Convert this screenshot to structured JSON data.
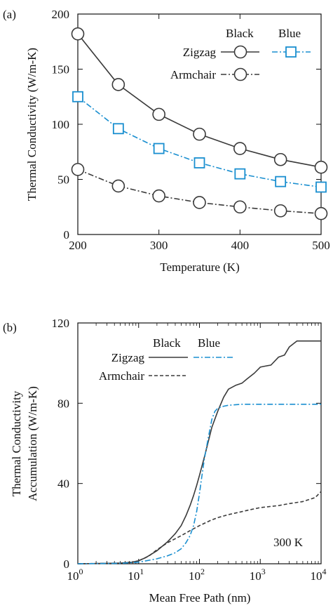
{
  "colors": {
    "black": "#3a3a3a",
    "blue": "#1a8fd0"
  },
  "chart_data": [
    {
      "panel": "(a)",
      "type": "line",
      "xlabel": "Temperature (K)",
      "ylabel": "Thermal Conductivity (W/m-K)",
      "xlim": [
        200,
        500
      ],
      "ylim": [
        0,
        200
      ],
      "xticks": [
        200,
        300,
        400,
        500
      ],
      "yticks": [
        0,
        50,
        100,
        150,
        200
      ],
      "grid": false,
      "legend": {
        "position": "top-right",
        "col_black": "Black",
        "col_blue": "Blue",
        "rows": [
          "Zigzag",
          "Armchair"
        ]
      },
      "x": [
        200,
        250,
        300,
        350,
        400,
        450,
        500
      ],
      "series": [
        {
          "name": "Zigzag",
          "legend_col": "Black",
          "color": "black",
          "marker": "circle",
          "dash": "solid",
          "values": [
            182,
            136,
            109,
            91,
            78,
            68,
            61
          ]
        },
        {
          "name": "Armchair",
          "legend_col": "Black",
          "color": "black",
          "marker": "circle",
          "dash": "dashdot",
          "values": [
            59,
            44,
            35,
            29,
            25,
            21.5,
            19
          ]
        },
        {
          "name": "Zigzag",
          "legend_col": "Blue",
          "color": "blue",
          "marker": "square",
          "dash": "dashdot",
          "values": [
            125,
            96,
            78,
            65,
            55,
            48,
            43
          ]
        }
      ]
    },
    {
      "panel": "(b)",
      "type": "line",
      "xlabel": "Mean Free Path (nm)",
      "ylabel_line1": "Thermal Conductivity",
      "ylabel_line2": "Accumulation (W/m-K)",
      "xscale": "log",
      "xlim": [
        1,
        10000
      ],
      "ylim": [
        0,
        120
      ],
      "xticks": [
        1,
        10,
        100,
        1000,
        10000
      ],
      "xtick_base": "10",
      "xtick_exponents": [
        "0",
        "1",
        "2",
        "3",
        "4"
      ],
      "yticks": [
        0,
        40,
        80,
        120
      ],
      "grid": false,
      "annotation": "300 K",
      "legend": {
        "position": "top-left",
        "col_black": "Black",
        "col_blue": "Blue",
        "rows": [
          "Zigzag",
          "Armchair"
        ]
      },
      "series": [
        {
          "name": "Zigzag",
          "legend_col": "Black",
          "color": "black",
          "dash": "solid",
          "x": [
            1,
            5,
            8,
            10,
            13,
            20,
            30,
            40,
            50,
            60,
            70,
            80,
            90,
            100,
            120,
            140,
            160,
            200,
            250,
            300,
            400,
            500,
            600,
            800,
            1000,
            1200,
            1500,
            2000,
            2500,
            3000,
            4000,
            5000,
            7000,
            10000
          ],
          "values": [
            0,
            0.3,
            0.8,
            1.5,
            3,
            6.5,
            11,
            15,
            19,
            24,
            29,
            34,
            39,
            44,
            53,
            61,
            68,
            76,
            83,
            87,
            89,
            90,
            92,
            95,
            98,
            98.5,
            99,
            103,
            104,
            108,
            111,
            111,
            111,
            111
          ]
        },
        {
          "name": "Armchair",
          "legend_col": "Black",
          "color": "black",
          "dash": "dashed",
          "x": [
            1,
            5,
            8,
            10,
            15,
            20,
            30,
            40,
            50,
            70,
            100,
            150,
            200,
            300,
            500,
            700,
            1000,
            2000,
            3000,
            5000,
            8000,
            10000
          ],
          "values": [
            0,
            0.3,
            0.8,
            1.5,
            4,
            7,
            10.5,
            12.5,
            14,
            16.5,
            19,
            21.5,
            23,
            24.5,
            26,
            27,
            28,
            29,
            30,
            31,
            33,
            36
          ]
        },
        {
          "name": "Zigzag",
          "legend_col": "Blue",
          "color": "blue",
          "dash": "dashdot",
          "x": [
            1,
            5,
            10,
            20,
            30,
            40,
            50,
            60,
            70,
            80,
            90,
            100,
            110,
            120,
            140,
            160,
            180,
            200,
            250,
            300,
            500,
            1000,
            3000,
            10000
          ],
          "values": [
            0,
            0.2,
            0.8,
            2.5,
            4,
            5.5,
            7.5,
            10.5,
            14,
            19,
            26,
            35,
            44,
            52,
            63,
            72,
            76,
            77.5,
            78.5,
            79,
            79.5,
            79.5,
            79.5,
            79.5
          ]
        }
      ]
    }
  ]
}
